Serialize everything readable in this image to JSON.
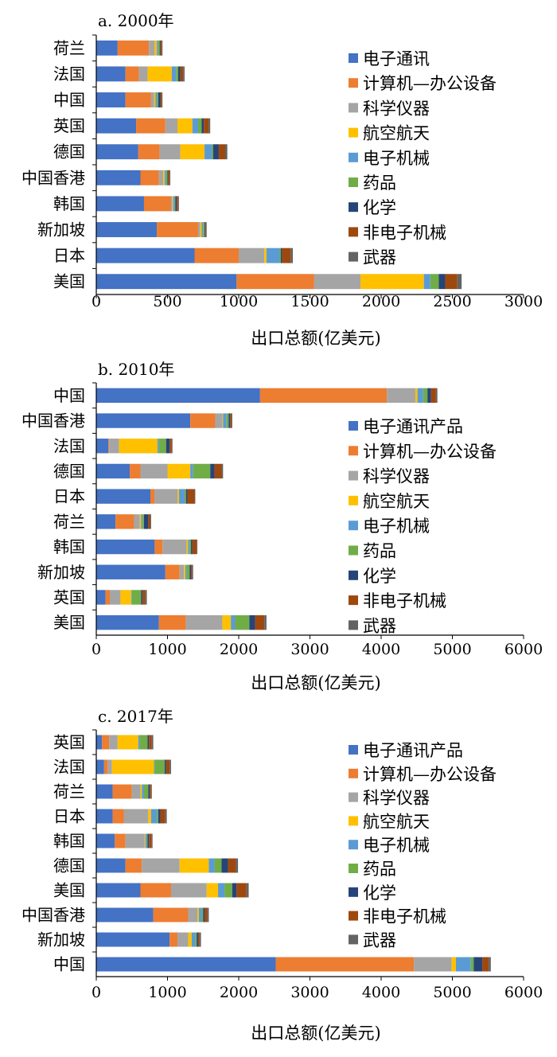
{
  "colors": {
    "电子通讯": "#4472c4",
    "计算机—办公设备": "#ed7d31",
    "科学仪器": "#a5a5a5",
    "航空航天": "#ffc000",
    "电子机械": "#5b9bd5",
    "药品": "#70ad47",
    "化学": "#264478",
    "非电子机械": "#9e480e",
    "武器": "#636363"
  },
  "chart_data": [
    {
      "type": "bar",
      "orientation": "horizontal",
      "stacked": true,
      "title": "a. 2000年",
      "xlabel": "出口总额(亿美元)",
      "xlim": [
        0,
        3000
      ],
      "xticks": [
        "0",
        "500",
        "1000",
        "1500",
        "2000",
        "2500",
        "3000"
      ],
      "grid": false,
      "legend_position": "right",
      "legend": [
        "电子通讯",
        "计算机—办公设备",
        "科学仪器",
        "航空航天",
        "电子机械",
        "药品",
        "化学",
        "非电子机械",
        "武器"
      ],
      "categories": [
        "美国",
        "日本",
        "新加坡",
        "韩国",
        "中国香港",
        "德国",
        "英国",
        "中国",
        "法国",
        "荷兰"
      ],
      "series": [
        {
          "name": "电子通讯",
          "values": [
            985,
            690,
            425,
            335,
            310,
            295,
            280,
            205,
            205,
            150
          ]
        },
        {
          "name": "计算机—办公设备",
          "values": [
            545,
            310,
            290,
            190,
            130,
            150,
            205,
            180,
            95,
            220
          ]
        },
        {
          "name": "科学仪器",
          "values": [
            325,
            180,
            15,
            10,
            30,
            145,
            85,
            20,
            60,
            40
          ]
        },
        {
          "name": "航空航天",
          "values": [
            445,
            15,
            10,
            5,
            10,
            170,
            105,
            10,
            170,
            15
          ]
        },
        {
          "name": "电子机械",
          "values": [
            45,
            90,
            10,
            10,
            10,
            50,
            40,
            10,
            30,
            10
          ]
        },
        {
          "name": "药品",
          "values": [
            60,
            10,
            10,
            5,
            10,
            10,
            25,
            10,
            15,
            10
          ]
        },
        {
          "name": "化学",
          "values": [
            45,
            10,
            5,
            10,
            5,
            40,
            15,
            15,
            15,
            5
          ]
        },
        {
          "name": "非电子机械",
          "values": [
            85,
            60,
            5,
            10,
            10,
            45,
            35,
            10,
            20,
            10
          ]
        },
        {
          "name": "武器",
          "values": [
            30,
            15,
            5,
            5,
            5,
            15,
            10,
            5,
            10,
            5
          ]
        }
      ]
    },
    {
      "type": "bar",
      "orientation": "horizontal",
      "stacked": true,
      "title": "b. 2010年",
      "xlabel": "出口总额(亿美元)",
      "xlim": [
        0,
        6000
      ],
      "xticks": [
        "0",
        "1000",
        "2000",
        "3000",
        "4000",
        "5000",
        "6000"
      ],
      "grid": false,
      "legend_position": "right",
      "legend": [
        "电子通讯产品",
        "计算机—办公设备",
        "科学仪器",
        "航空航天",
        "电子机械",
        "药品",
        "化学",
        "非电子机械",
        "武器"
      ],
      "categories": [
        "美国",
        "英国",
        "新加坡",
        "韩国",
        "荷兰",
        "日本",
        "德国",
        "法国",
        "中国香港",
        "中国"
      ],
      "series": [
        {
          "name": "电子通讯产品",
          "values": [
            880,
            130,
            970,
            820,
            270,
            760,
            470,
            170,
            1320,
            2300
          ]
        },
        {
          "name": "计算机—办公设备",
          "values": [
            380,
            60,
            200,
            110,
            260,
            60,
            150,
            10,
            350,
            1780
          ]
        },
        {
          "name": "科学仪器",
          "values": [
            510,
            150,
            60,
            340,
            80,
            320,
            380,
            140,
            100,
            400
          ]
        },
        {
          "name": "航空航天",
          "values": [
            120,
            150,
            20,
            20,
            20,
            20,
            320,
            540,
            10,
            30
          ]
        },
        {
          "name": "电子机械",
          "values": [
            60,
            10,
            20,
            20,
            20,
            80,
            40,
            20,
            50,
            80
          ]
        },
        {
          "name": "药品",
          "values": [
            200,
            130,
            40,
            20,
            20,
            20,
            240,
            100,
            30,
            60
          ]
        },
        {
          "name": "化学",
          "values": [
            80,
            20,
            20,
            20,
            60,
            20,
            60,
            50,
            20,
            50
          ]
        },
        {
          "name": "非电子机械",
          "values": [
            130,
            40,
            20,
            60,
            30,
            100,
            100,
            30,
            20,
            70
          ]
        },
        {
          "name": "武器",
          "values": [
            30,
            20,
            10,
            10,
            10,
            10,
            20,
            10,
            10,
            20
          ]
        }
      ]
    },
    {
      "type": "bar",
      "orientation": "horizontal",
      "stacked": true,
      "title": "c. 2017年",
      "xlabel": "出口总额(亿美元)",
      "xlim": [
        0,
        6000
      ],
      "xticks": [
        "0",
        "1000",
        "2000",
        "3000",
        "4000",
        "5000",
        "6000"
      ],
      "grid": false,
      "legend_position": "right",
      "legend": [
        "电子通讯产品",
        "计算机—办公设备",
        "科学仪器",
        "航空航天",
        "电子机械",
        "药品",
        "化学",
        "非电子机械",
        "武器"
      ],
      "categories": [
        "中国",
        "新加坡",
        "中国香港",
        "美国",
        "德国",
        "韩国",
        "日本",
        "荷兰",
        "法国",
        "英国"
      ],
      "series": [
        {
          "name": "电子通讯产品",
          "values": [
            2520,
            1030,
            800,
            620,
            410,
            260,
            230,
            230,
            110,
            80
          ]
        },
        {
          "name": "计算机—办公设备",
          "values": [
            1940,
            110,
            490,
            430,
            230,
            150,
            160,
            270,
            50,
            100
          ]
        },
        {
          "name": "科学仪器",
          "values": [
            530,
            150,
            130,
            500,
            530,
            270,
            340,
            120,
            60,
            120
          ]
        },
        {
          "name": "航空航天",
          "values": [
            60,
            50,
            20,
            160,
            410,
            10,
            40,
            20,
            590,
            290
          ]
        },
        {
          "name": "电子机械",
          "values": [
            210,
            50,
            40,
            90,
            80,
            20,
            80,
            30,
            10,
            20
          ]
        },
        {
          "name": "药品",
          "values": [
            40,
            20,
            20,
            110,
            100,
            10,
            20,
            60,
            140,
            110
          ]
        },
        {
          "name": "化学",
          "values": [
            120,
            20,
            20,
            60,
            90,
            20,
            30,
            20,
            20,
            20
          ]
        },
        {
          "name": "非电子机械",
          "values": [
            90,
            20,
            40,
            140,
            110,
            40,
            70,
            20,
            50,
            40
          ]
        },
        {
          "name": "武器",
          "values": [
            30,
            20,
            20,
            30,
            30,
            10,
            20,
            10,
            20,
            20
          ]
        }
      ]
    }
  ]
}
